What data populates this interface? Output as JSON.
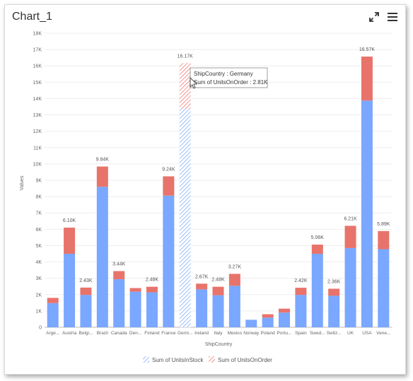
{
  "widget": {
    "title": "Chart_1",
    "icons": [
      "expand-icon",
      "menu-icon"
    ]
  },
  "tooltip": {
    "line1": "ShipCountry : Germany",
    "line2": "Sum of UnitsOnOrder : 2.81K"
  },
  "colors": {
    "in_stock": "#7aa7ff",
    "on_order": "#e8736b",
    "highlight_stripe_blue": "#7aa7ff",
    "highlight_stripe_red": "#e8736b",
    "axis_text": "#666666"
  },
  "chart_data": {
    "type": "bar",
    "stacked": true,
    "xlabel": "ShipCountry",
    "ylabel": "Values",
    "ylim": [
      0,
      18000
    ],
    "y_ticks": [
      "0",
      "1K",
      "2K",
      "3K",
      "4K",
      "5K",
      "6K",
      "7K",
      "8K",
      "9K",
      "10K",
      "11K",
      "12K",
      "13K",
      "14K",
      "15K",
      "16K",
      "17K",
      "18K"
    ],
    "grid": true,
    "legend_position": "bottom",
    "highlighted_category": "Germ...",
    "categories": [
      "Arge...",
      "Austria",
      "Belgi...",
      "Brazil",
      "Canada",
      "Den...",
      "Finland",
      "France",
      "Germ...",
      "Ireland",
      "Italy",
      "Mexico",
      "Norway",
      "Poland",
      "Portu...",
      "Spain",
      "Swed...",
      "Switz...",
      "UK",
      "USA",
      "Vene..."
    ],
    "series": [
      {
        "name": "Sum of UnitsInStock",
        "values": [
          1480,
          4500,
          1980,
          8600,
          2940,
          2180,
          2140,
          8060,
          13360,
          2320,
          1960,
          2540,
          460,
          590,
          900,
          1980,
          4500,
          1930,
          4850,
          13880,
          4780
        ]
      },
      {
        "name": "Sum of UnitsOnOrder",
        "values": [
          320,
          1600,
          450,
          1240,
          500,
          220,
          340,
          1180,
          2810,
          350,
          520,
          730,
          0,
          210,
          240,
          440,
          560,
          430,
          1360,
          2690,
          1110
        ]
      }
    ],
    "totals_labels": [
      "",
      "6.10K",
      "2.43K",
      "9.84K",
      "3.44K",
      "",
      "2.48K",
      "9.24K",
      "16.17K",
      "2.67K",
      "2.48K",
      "3.27K",
      "",
      "",
      "",
      "2.42K",
      "5.06K",
      "2.36K",
      "6.21K",
      "16.57K",
      "5.89K"
    ]
  }
}
